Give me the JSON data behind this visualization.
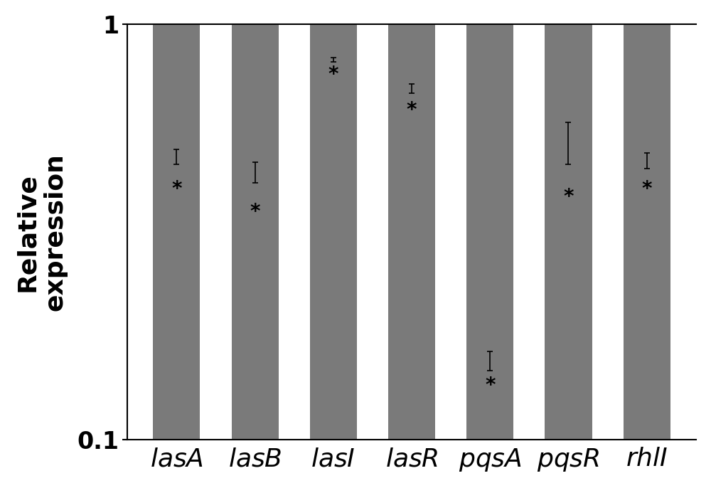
{
  "categories": [
    "lasA",
    "lasB",
    "lasI",
    "lasR",
    "pqsA",
    "pqsR",
    "rhlI"
  ],
  "bar_tops": [
    1.0,
    1.0,
    1.0,
    1.0,
    1.0,
    1.0,
    1.0
  ],
  "bar_bottoms": [
    0.48,
    0.44,
    0.82,
    0.7,
    0.155,
    0.52,
    0.47
  ],
  "errors": [
    0.02,
    0.025,
    0.01,
    0.018,
    0.008,
    0.06,
    0.02
  ],
  "bar_color": "#7a7a7a",
  "bar_width": 0.6,
  "ylim": [
    0.1,
    1.05
  ],
  "ylabel": "Relative\nexpression",
  "ylabel_fontsize": 26,
  "tick_fontsize": 24,
  "xlabel_fontsize": 26,
  "background_color": "#ffffff",
  "ytick_labels": [
    "0.1",
    "1"
  ],
  "asterisk_rel_offset": [
    0.08,
    0.1,
    0.015,
    0.04,
    0.03,
    0.12,
    0.06
  ]
}
